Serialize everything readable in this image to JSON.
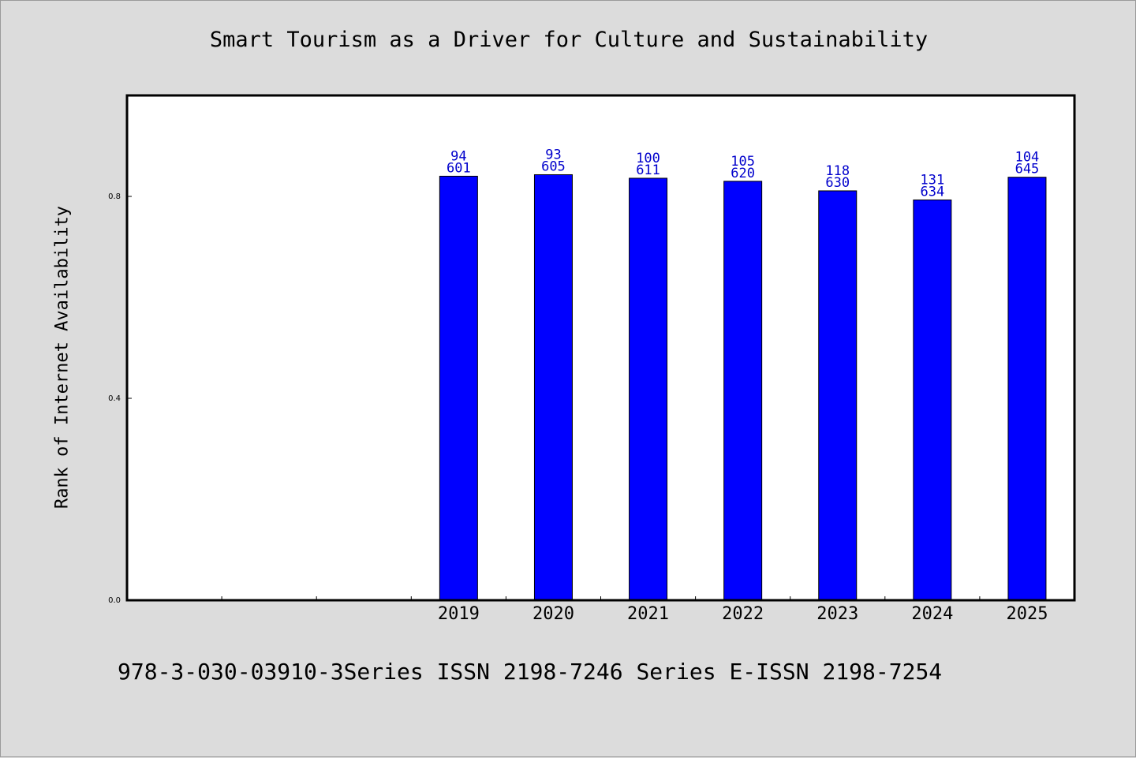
{
  "title": "Smart Tourism as a Driver for Culture and Sustainability",
  "footer_text": "978-3-030-03910-3Series ISSN 2198-7246 Series E-ISSN 2198-7254",
  "chart_data": {
    "type": "bar",
    "title": "Smart Tourism as a Driver for Culture and Sustainability",
    "xlabel": "",
    "ylabel": "Rank of Internet Availability",
    "ylim": [
      0,
      1.0
    ],
    "yticks": [
      0.0,
      0.4,
      0.8
    ],
    "ytick_labels": [
      "0.0",
      "0.4",
      "0.8"
    ],
    "slot_count": 10,
    "first_bar_slot": 3,
    "categories": [
      "2019",
      "2020",
      "2021",
      "2022",
      "2023",
      "2024",
      "2025"
    ],
    "values": [
      0.84,
      0.843,
      0.836,
      0.83,
      0.811,
      0.793,
      0.838
    ],
    "labels_top": [
      "94",
      "93",
      "100",
      "105",
      "118",
      "131",
      "104"
    ],
    "labels_bottom": [
      "601",
      "605",
      "611",
      "620",
      "630",
      "634",
      "645"
    ],
    "bar_color": "#0000ff",
    "label_color": "#0000cc",
    "grid": false,
    "legend": "none"
  }
}
